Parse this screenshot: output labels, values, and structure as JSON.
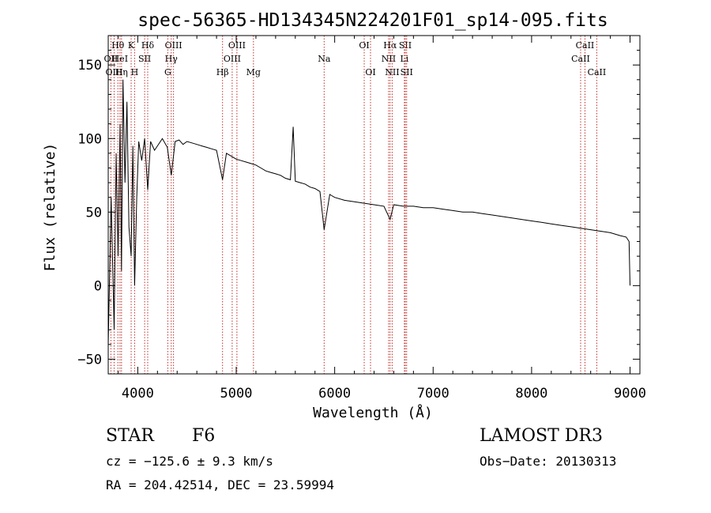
{
  "chart_data": {
    "type": "line",
    "title": "spec-56365-HD134345N224201F01_sp14-095.fits",
    "xlabel": "Wavelength (Å)",
    "ylabel": "Flux (relative)",
    "xlim": [
      3700,
      9100
    ],
    "ylim": [
      -60,
      170
    ],
    "xticks": [
      4000,
      5000,
      6000,
      7000,
      8000,
      9000
    ],
    "yticks": [
      -50,
      0,
      50,
      100,
      150
    ],
    "x_minor_step": 200,
    "y_minor_step": 10,
    "series": [
      {
        "name": "flux",
        "x": [
          3700,
          3730,
          3760,
          3780,
          3800,
          3820,
          3835,
          3850,
          3870,
          3890,
          3910,
          3933,
          3950,
          3968,
          3990,
          4010,
          4040,
          4070,
          4101,
          4130,
          4170,
          4200,
          4250,
          4300,
          4340,
          4380,
          4420,
          4460,
          4500,
          4550,
          4600,
          4650,
          4700,
          4750,
          4800,
          4861,
          4900,
          4950,
          5000,
          5050,
          5100,
          5150,
          5200,
          5250,
          5300,
          5350,
          5400,
          5450,
          5500,
          5550,
          5578,
          5600,
          5650,
          5700,
          5750,
          5800,
          5850,
          5893,
          5950,
          6000,
          6100,
          6200,
          6300,
          6400,
          6500,
          6563,
          6600,
          6700,
          6800,
          6900,
          7000,
          7100,
          7200,
          7300,
          7400,
          7500,
          7600,
          7700,
          7800,
          7900,
          8000,
          8100,
          8200,
          8300,
          8400,
          8500,
          8600,
          8700,
          8800,
          8900,
          8960,
          8990,
          9000
        ],
        "y": [
          -40,
          60,
          -30,
          90,
          20,
          110,
          10,
          140,
          70,
          125,
          40,
          20,
          95,
          0,
          60,
          98,
          85,
          100,
          65,
          98,
          92,
          95,
          100,
          94,
          75,
          98,
          99,
          96,
          98,
          97,
          96,
          95,
          94,
          93,
          92,
          72,
          90,
          88,
          86,
          85,
          84,
          83,
          82,
          80,
          78,
          77,
          76,
          75,
          73,
          72,
          108,
          71,
          70,
          69,
          67,
          66,
          64,
          38,
          62,
          60,
          58,
          57,
          56,
          55,
          54,
          45,
          55,
          54,
          54,
          53,
          53,
          52,
          51,
          50,
          50,
          49,
          48,
          47,
          46,
          45,
          44,
          43,
          42,
          41,
          40,
          39,
          38,
          37,
          36,
          34,
          33,
          30,
          0
        ]
      }
    ],
    "lines": [
      {
        "label": "Hθ",
        "x": 3798,
        "row": 1
      },
      {
        "label": "OII",
        "x": 3727,
        "row": 2
      },
      {
        "label": "HeI",
        "x": 3819,
        "row": 2
      },
      {
        "label": "OIII",
        "x": 3760,
        "row": 3
      },
      {
        "label": "Hη",
        "x": 3835,
        "row": 3
      },
      {
        "label": "K",
        "x": 3933,
        "row": 1
      },
      {
        "label": "SII",
        "x": 4070,
        "row": 2
      },
      {
        "label": "H",
        "x": 3968,
        "row": 3
      },
      {
        "label": "Hδ",
        "x": 4101,
        "row": 1
      },
      {
        "label": "OIII",
        "x": 4363,
        "row": 1
      },
      {
        "label": "Hγ",
        "x": 4340,
        "row": 2
      },
      {
        "label": "G",
        "x": 4305,
        "row": 3
      },
      {
        "label": "Hβ",
        "x": 4861,
        "row": 3
      },
      {
        "label": "OIII",
        "x": 5007,
        "row": 1
      },
      {
        "label": "OIII",
        "x": 4959,
        "row": 2
      },
      {
        "label": "Mg",
        "x": 5175,
        "row": 3
      },
      {
        "label": "Na",
        "x": 5893,
        "row": 2
      },
      {
        "label": "OI",
        "x": 6300,
        "row": 1
      },
      {
        "label": "OI",
        "x": 6364,
        "row": 3
      },
      {
        "label": "Hα",
        "x": 6563,
        "row": 1
      },
      {
        "label": "NII",
        "x": 6548,
        "row": 2
      },
      {
        "label": "NII",
        "x": 6584,
        "row": 3
      },
      {
        "label": "SII",
        "x": 6717,
        "row": 1
      },
      {
        "label": "Li",
        "x": 6708,
        "row": 2
      },
      {
        "label": "SII",
        "x": 6731,
        "row": 3
      },
      {
        "label": "CaII",
        "x": 8542,
        "row": 1
      },
      {
        "label": "CaII",
        "x": 8498,
        "row": 2
      },
      {
        "label": "CaII",
        "x": 8662,
        "row": 3
      }
    ],
    "grid": false,
    "line_color": "#000000",
    "marker_color": "#c0302a"
  },
  "info": {
    "class": "STAR",
    "subclass": "F6",
    "survey": "LAMOST DR3",
    "velocity": "cz = −125.6 ± 9.3 km/s",
    "obs_date": "Obs−Date: 20130313",
    "coords": "RA = 204.42514, DEC =  23.59994"
  }
}
